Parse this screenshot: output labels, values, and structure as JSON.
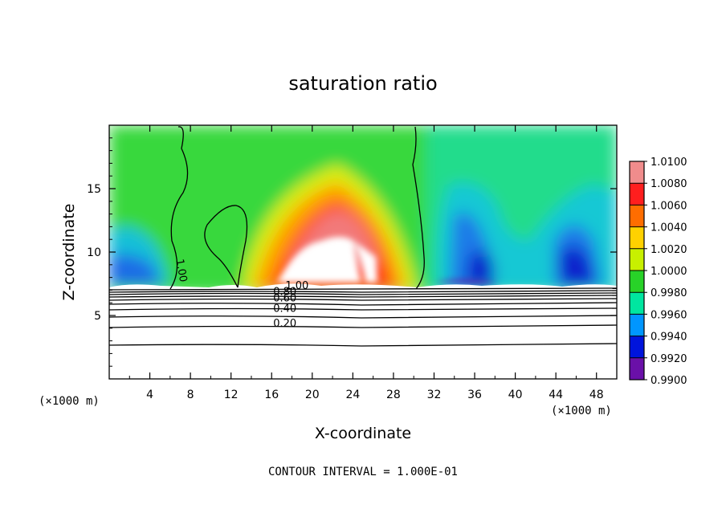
{
  "chart_data": {
    "type": "heatmap",
    "title": "saturation ratio",
    "xlabel": "X-coordinate",
    "ylabel": "Z-coordinate",
    "x_units_left": "(×1000 m)",
    "x_units_right": "(×1000 m)",
    "xlim": [
      0,
      50
    ],
    "ylim": [
      0,
      20
    ],
    "x_ticks": [
      4,
      8,
      12,
      16,
      20,
      24,
      28,
      32,
      36,
      40,
      44,
      48
    ],
    "y_ticks": [
      5,
      10,
      15
    ],
    "colorbar": {
      "levels": [
        "1.0100",
        "1.0080",
        "1.0060",
        "1.0040",
        "1.0020",
        "1.0000",
        "0.9980",
        "0.9960",
        "0.9940",
        "0.9920",
        "0.9900"
      ],
      "range": [
        0.99,
        1.01
      ],
      "colors": [
        "#f08c8c",
        "#ff1e1e",
        "#ff6d00",
        "#ffd100",
        "#c8f000",
        "#28d228",
        "#00e6a0",
        "#0096ff",
        "#0014dc",
        "#6a10a8"
      ]
    },
    "contour_labels": [
      {
        "text": "1.00",
        "x": 6.8,
        "y": 8.5
      },
      {
        "text": "1.00",
        "x": 18.5,
        "y": 7.1
      },
      {
        "text": "0.80",
        "x": 17.3,
        "y": 6.6
      },
      {
        "text": "0.60",
        "x": 17.3,
        "y": 6.1
      },
      {
        "text": "0.40",
        "x": 17.3,
        "y": 5.3
      },
      {
        "text": "0.20",
        "x": 17.3,
        "y": 4.1
      }
    ],
    "footer": "CONTOUR INTERVAL = 1.000E-01"
  }
}
